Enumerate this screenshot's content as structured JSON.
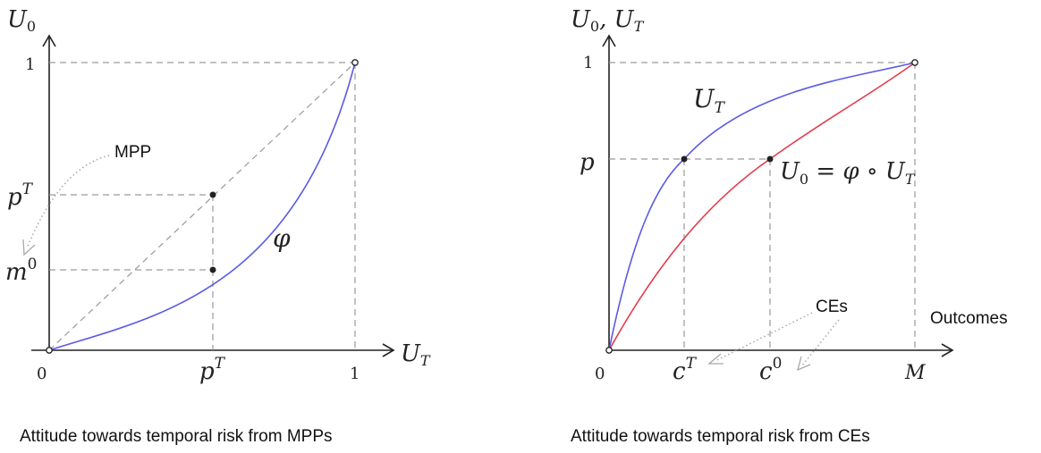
{
  "left_panel": {
    "y_axis_label": "U",
    "y_axis_sub": "0",
    "x_axis_label": "U",
    "x_axis_sub": "T",
    "tick_one_y": "1",
    "tick_pT_y": "p",
    "tick_pT_y_sup": "T",
    "tick_m0": "m",
    "tick_m0_sup": "0",
    "tick_zero": "0",
    "tick_pT_x": "p",
    "tick_pT_x_sup": "T",
    "tick_one_x": "1",
    "curve_label": "φ",
    "annotation": "MPP",
    "caption": "Attitude towards temporal risk from MPPs"
  },
  "right_panel": {
    "y_axis_label_a": "U",
    "y_axis_sub_a": "0",
    "y_axis_sep": ", ",
    "y_axis_label_b": "U",
    "y_axis_sub_b": "T",
    "x_axis_label": "Outcomes",
    "tick_one_y": "1",
    "tick_p": "p",
    "tick_zero": "0",
    "tick_cT": "c",
    "tick_cT_sup": "T",
    "tick_c0": "c",
    "tick_c0_sup": "0",
    "tick_M": "M",
    "upper_curve_label": "U",
    "upper_curve_sub": "T",
    "lower_curve_label_main": "U",
    "lower_curve_label_sub": "0",
    "lower_curve_label_rest": " = φ ∘ U",
    "lower_curve_label_sub2": "T",
    "annotation": "CEs",
    "caption": "Attitude towards temporal risk from CEs"
  },
  "colors": {
    "blue_curve": "#5a5ae6",
    "red_curve": "#e23b4b",
    "dashed_guides": "#9a9a9a"
  }
}
